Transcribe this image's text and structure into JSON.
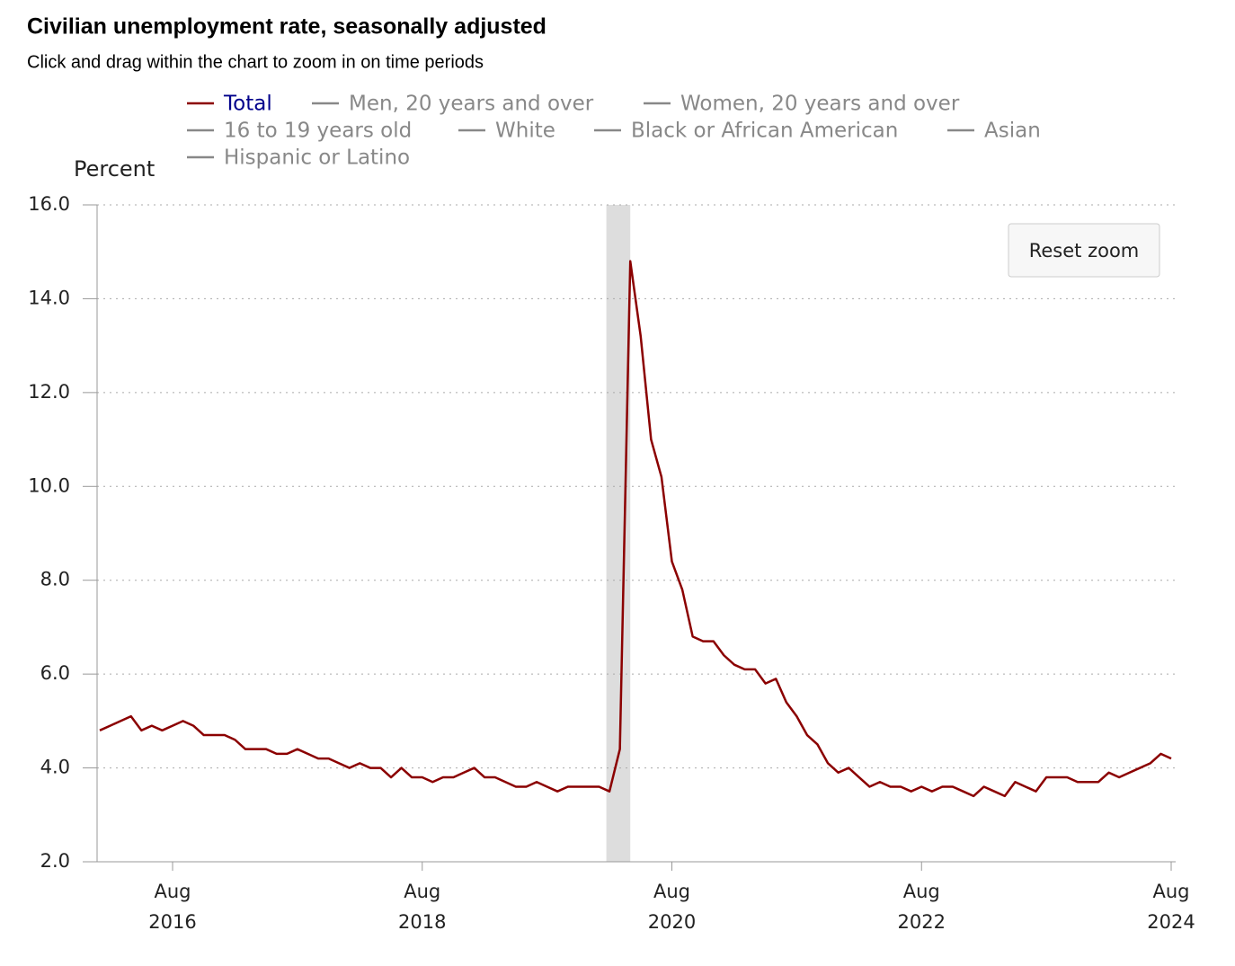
{
  "chart_data": {
    "type": "line",
    "title": "Civilian unemployment rate, seasonally adjusted",
    "subtitle": "Click and drag within the chart to zoom in on time periods",
    "y_label": "Percent",
    "button": "Reset zoom",
    "x": [
      "2016-01",
      "2016-02",
      "2016-03",
      "2016-04",
      "2016-05",
      "2016-06",
      "2016-07",
      "2016-08",
      "2016-09",
      "2016-10",
      "2016-11",
      "2016-12",
      "2017-01",
      "2017-02",
      "2017-03",
      "2017-04",
      "2017-05",
      "2017-06",
      "2017-07",
      "2017-08",
      "2017-09",
      "2017-10",
      "2017-11",
      "2017-12",
      "2018-01",
      "2018-02",
      "2018-03",
      "2018-04",
      "2018-05",
      "2018-06",
      "2018-07",
      "2018-08",
      "2018-09",
      "2018-10",
      "2018-11",
      "2018-12",
      "2019-01",
      "2019-02",
      "2019-03",
      "2019-04",
      "2019-05",
      "2019-06",
      "2019-07",
      "2019-08",
      "2019-09",
      "2019-10",
      "2019-11",
      "2019-12",
      "2020-01",
      "2020-02",
      "2020-03",
      "2020-04",
      "2020-05",
      "2020-06",
      "2020-07",
      "2020-08",
      "2020-09",
      "2020-10",
      "2020-11",
      "2020-12",
      "2021-01",
      "2021-02",
      "2021-03",
      "2021-04",
      "2021-05",
      "2021-06",
      "2021-07",
      "2021-08",
      "2021-09",
      "2021-10",
      "2021-11",
      "2021-12",
      "2022-01",
      "2022-02",
      "2022-03",
      "2022-04",
      "2022-05",
      "2022-06",
      "2022-07",
      "2022-08",
      "2022-09",
      "2022-10",
      "2022-11",
      "2022-12",
      "2023-01",
      "2023-02",
      "2023-03",
      "2023-04",
      "2023-05",
      "2023-06",
      "2023-07",
      "2023-08",
      "2023-09",
      "2023-10",
      "2023-11",
      "2023-12",
      "2024-01",
      "2024-02",
      "2024-03",
      "2024-04",
      "2024-05",
      "2024-06",
      "2024-07",
      "2024-08"
    ],
    "series": [
      {
        "name": "Total",
        "color": "#8b0000",
        "values": [
          4.8,
          4.9,
          5.0,
          5.1,
          4.8,
          4.9,
          4.8,
          4.9,
          5.0,
          4.9,
          4.7,
          4.7,
          4.7,
          4.6,
          4.4,
          4.4,
          4.4,
          4.3,
          4.3,
          4.4,
          4.3,
          4.2,
          4.2,
          4.1,
          4.0,
          4.1,
          4.0,
          4.0,
          3.8,
          4.0,
          3.8,
          3.8,
          3.7,
          3.8,
          3.8,
          3.9,
          4.0,
          3.8,
          3.8,
          3.7,
          3.6,
          3.6,
          3.7,
          3.6,
          3.5,
          3.6,
          3.6,
          3.6,
          3.6,
          3.5,
          4.4,
          14.8,
          13.2,
          11.0,
          10.2,
          8.4,
          7.8,
          6.8,
          6.7,
          6.7,
          6.4,
          6.2,
          6.1,
          6.1,
          5.8,
          5.9,
          5.4,
          5.1,
          4.7,
          4.5,
          4.1,
          3.9,
          4.0,
          3.8,
          3.6,
          3.7,
          3.6,
          3.6,
          3.5,
          3.6,
          3.5,
          3.6,
          3.6,
          3.5,
          3.4,
          3.6,
          3.5,
          3.4,
          3.7,
          3.6,
          3.5,
          3.8,
          3.8,
          3.8,
          3.7,
          3.7,
          3.7,
          3.9,
          3.8,
          3.9,
          4.0,
          4.1,
          4.3,
          4.2
        ]
      }
    ],
    "hidden_series": [
      {
        "name": "Men, 20 years and over",
        "color": "#888888"
      },
      {
        "name": "Women, 20 years and over",
        "color": "#888888"
      },
      {
        "name": "16 to 19 years old",
        "color": "#888888"
      },
      {
        "name": "White",
        "color": "#888888"
      },
      {
        "name": "Black or African American",
        "color": "#888888"
      },
      {
        "name": "Asian",
        "color": "#888888"
      },
      {
        "name": "Hispanic or Latino",
        "color": "#888888"
      }
    ],
    "recession": {
      "start": "2020-02",
      "end": "2020-04",
      "color": "#dddddd"
    },
    "xlim": [
      "2016-01",
      "2024-08"
    ],
    "xticks": [
      {
        "value": "2016-08",
        "label": "Aug 2016"
      },
      {
        "value": "2018-08",
        "label": "Aug 2018"
      },
      {
        "value": "2020-08",
        "label": "Aug 2020"
      },
      {
        "value": "2022-08",
        "label": "Aug 2022"
      },
      {
        "value": "2024-08",
        "label": "Aug 2024"
      }
    ],
    "ylim": [
      2,
      16
    ],
    "yticks": [
      {
        "value": 2,
        "label": "2.0"
      },
      {
        "value": 4,
        "label": "4.0"
      },
      {
        "value": 6,
        "label": "6.0"
      },
      {
        "value": 8,
        "label": "8.0"
      },
      {
        "value": 10,
        "label": "10.0"
      },
      {
        "value": 12,
        "label": "12.0"
      },
      {
        "value": 14,
        "label": "14.0"
      },
      {
        "value": 16,
        "label": "16.0"
      }
    ],
    "grid": true
  }
}
